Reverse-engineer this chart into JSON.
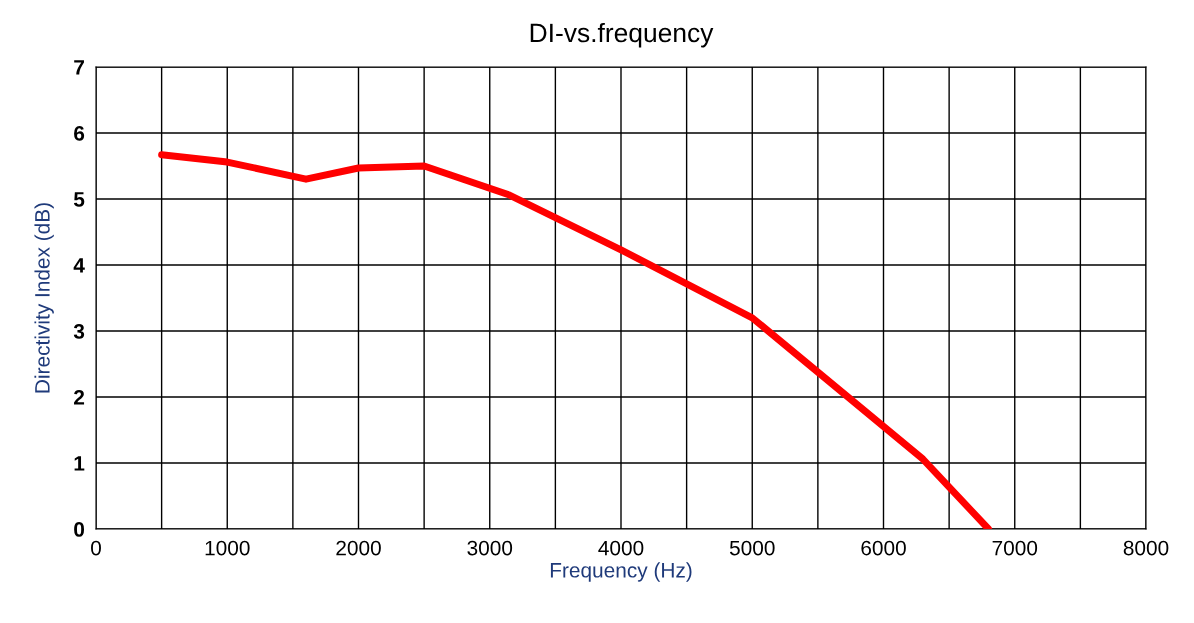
{
  "chart_data": {
    "type": "line",
    "title": "DI-vs.frequency",
    "xlabel": "Frequency (Hz)",
    "ylabel": "Directivity Index (dB)",
    "x": [
      500,
      1000,
      1600,
      2000,
      2500,
      3150,
      4000,
      5000,
      6300,
      6800
    ],
    "series": [
      {
        "color": "#ff0000",
        "values": [
          5.67,
          5.56,
          5.3,
          5.47,
          5.5,
          5.06,
          4.23,
          3.2,
          1.06,
          0
        ]
      }
    ],
    "xlim": [
      0,
      8000
    ],
    "xticks": [
      0,
      {
        "value": 500,
        "label": null
      },
      1000,
      {
        "value": 1500,
        "label": null
      },
      2000,
      {
        "value": 2500,
        "label": null
      },
      3000,
      {
        "value": 3500,
        "label": null
      },
      4000,
      {
        "value": 4500,
        "label": null
      },
      5000,
      {
        "value": 5500,
        "label": null
      },
      6000,
      {
        "value": 6500,
        "label": null
      },
      7000,
      {
        "value": 7500,
        "label": null
      },
      8000
    ],
    "ylim": [
      0,
      7
    ],
    "yticks": [
      0,
      1,
      2,
      3,
      4,
      5,
      6,
      7
    ],
    "grid": true,
    "marker": "none",
    "line_style": "solid"
  }
}
